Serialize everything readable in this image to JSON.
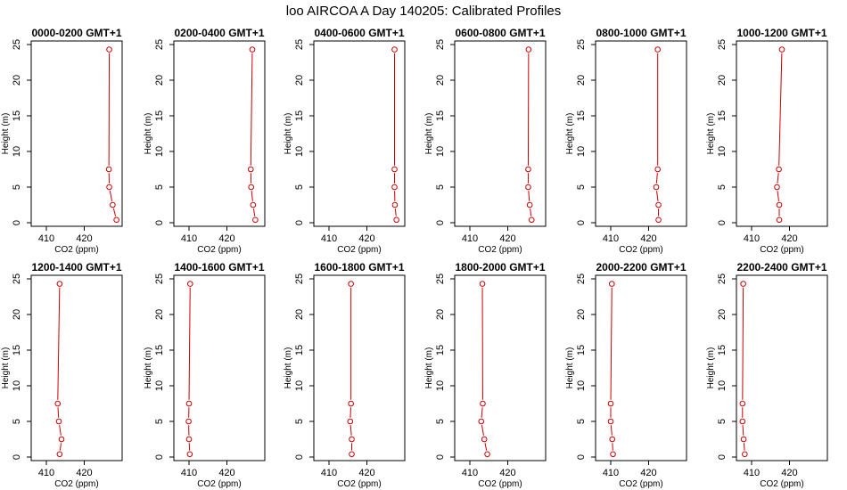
{
  "title": "loo AIRCOA A  Day 140205: Calibrated Profiles",
  "colors": {
    "series": "#cc0000",
    "axis": "#000000",
    "background": "#ffffff"
  },
  "chart_data": [
    {
      "type": "line",
      "title": "0000-0200 GMT+1",
      "xlabel": "CO2 (ppm)",
      "ylabel": "Height (m)",
      "xlim": [
        406,
        430
      ],
      "ylim": [
        -0.5,
        25.5
      ],
      "xticks": [
        410,
        420
      ],
      "yticks": [
        0,
        5,
        10,
        15,
        20,
        25
      ],
      "x": [
        428.5,
        427.5,
        426.6,
        426.5,
        426.6
      ],
      "y": [
        0.4,
        2.5,
        5,
        7.5,
        24.3
      ]
    },
    {
      "type": "line",
      "title": "0200-0400 GMT+1",
      "xlabel": "CO2 (ppm)",
      "ylabel": "Height (m)",
      "xlim": [
        406,
        430
      ],
      "ylim": [
        -0.5,
        25.5
      ],
      "xticks": [
        410,
        420
      ],
      "yticks": [
        0,
        5,
        10,
        15,
        20,
        25
      ],
      "x": [
        427.5,
        426.9,
        426.4,
        426.3,
        426.7
      ],
      "y": [
        0.4,
        2.5,
        5,
        7.5,
        24.3
      ]
    },
    {
      "type": "line",
      "title": "0400-0600 GMT+1",
      "xlabel": "CO2 (ppm)",
      "ylabel": "Height (m)",
      "xlim": [
        406,
        430
      ],
      "ylim": [
        -0.5,
        25.5
      ],
      "xticks": [
        410,
        420
      ],
      "yticks": [
        0,
        5,
        10,
        15,
        20,
        25
      ],
      "x": [
        427.8,
        427.4,
        427.3,
        427.3,
        427.3
      ],
      "y": [
        0.4,
        2.5,
        5,
        7.5,
        24.3
      ]
    },
    {
      "type": "line",
      "title": "0600-0800 GMT+1",
      "xlabel": "CO2 (ppm)",
      "ylabel": "Height (m)",
      "xlim": [
        406,
        430
      ],
      "ylim": [
        -0.5,
        25.5
      ],
      "xticks": [
        410,
        420
      ],
      "yticks": [
        0,
        5,
        10,
        15,
        20,
        25
      ],
      "x": [
        426.3,
        425.8,
        425.4,
        425.4,
        425.5
      ],
      "y": [
        0.4,
        2.5,
        5,
        7.5,
        24.3
      ]
    },
    {
      "type": "line",
      "title": "0800-1000 GMT+1",
      "xlabel": "CO2 (ppm)",
      "ylabel": "Height (m)",
      "xlim": [
        406,
        430
      ],
      "ylim": [
        -0.5,
        25.5
      ],
      "xticks": [
        410,
        420
      ],
      "yticks": [
        0,
        5,
        10,
        15,
        20,
        25
      ],
      "x": [
        422.6,
        422.6,
        422.0,
        422.4,
        422.4
      ],
      "y": [
        0.4,
        2.5,
        5,
        7.5,
        24.3
      ]
    },
    {
      "type": "line",
      "title": "1000-1200 GMT+1",
      "xlabel": "CO2 (ppm)",
      "ylabel": "Height (m)",
      "xlim": [
        406,
        430
      ],
      "ylim": [
        -0.5,
        25.5
      ],
      "xticks": [
        410,
        420
      ],
      "yticks": [
        0,
        5,
        10,
        15,
        20,
        25
      ],
      "x": [
        417.3,
        417.3,
        416.7,
        417.2,
        418.0
      ],
      "y": [
        0.4,
        2.5,
        5,
        7.5,
        24.3
      ]
    },
    {
      "type": "line",
      "title": "1200-1400 GMT+1",
      "xlabel": "CO2 (ppm)",
      "ylabel": "Height (m)",
      "xlim": [
        406,
        430
      ],
      "ylim": [
        -0.5,
        25.5
      ],
      "xticks": [
        410,
        420
      ],
      "yticks": [
        0,
        5,
        10,
        15,
        20,
        25
      ],
      "x": [
        413.5,
        414.0,
        413.3,
        413.0,
        413.5
      ],
      "y": [
        0.4,
        2.5,
        5,
        7.5,
        24.3
      ]
    },
    {
      "type": "line",
      "title": "1400-1600 GMT+1",
      "xlabel": "CO2 (ppm)",
      "ylabel": "Height (m)",
      "xlim": [
        406,
        430
      ],
      "ylim": [
        -0.5,
        25.5
      ],
      "xticks": [
        410,
        420
      ],
      "yticks": [
        0,
        5,
        10,
        15,
        20,
        25
      ],
      "x": [
        410.2,
        410.0,
        409.9,
        410.0,
        410.3
      ],
      "y": [
        0.4,
        2.5,
        5,
        7.5,
        24.3
      ]
    },
    {
      "type": "line",
      "title": "1600-1800 GMT+1",
      "xlabel": "CO2 (ppm)",
      "ylabel": "Height (m)",
      "xlim": [
        406,
        430
      ],
      "ylim": [
        -0.5,
        25.5
      ],
      "xticks": [
        410,
        420
      ],
      "yticks": [
        0,
        5,
        10,
        15,
        20,
        25
      ],
      "x": [
        416.0,
        416.0,
        415.6,
        415.8,
        415.8
      ],
      "y": [
        0.4,
        2.5,
        5,
        7.5,
        24.3
      ]
    },
    {
      "type": "line",
      "title": "1800-2000 GMT+1",
      "xlabel": "CO2 (ppm)",
      "ylabel": "Height (m)",
      "xlim": [
        406,
        430
      ],
      "ylim": [
        -0.5,
        25.5
      ],
      "xticks": [
        410,
        420
      ],
      "yticks": [
        0,
        5,
        10,
        15,
        20,
        25
      ],
      "x": [
        414.6,
        413.8,
        413.0,
        413.4,
        413.3
      ],
      "y": [
        0.4,
        2.5,
        5,
        7.5,
        24.3
      ]
    },
    {
      "type": "line",
      "title": "2000-2200 GMT+1",
      "xlabel": "CO2 (ppm)",
      "ylabel": "Height (m)",
      "xlim": [
        406,
        430
      ],
      "ylim": [
        -0.5,
        25.5
      ],
      "xticks": [
        410,
        420
      ],
      "yticks": [
        0,
        5,
        10,
        15,
        20,
        25
      ],
      "x": [
        410.6,
        410.4,
        410.0,
        410.0,
        410.3
      ],
      "y": [
        0.4,
        2.5,
        5,
        7.5,
        24.3
      ]
    },
    {
      "type": "line",
      "title": "2200-2400 GMT+1",
      "xlabel": "CO2 (ppm)",
      "ylabel": "Height (m)",
      "xlim": [
        406,
        430
      ],
      "ylim": [
        -0.5,
        25.5
      ],
      "xticks": [
        410,
        420
      ],
      "yticks": [
        0,
        5,
        10,
        15,
        20,
        25
      ],
      "x": [
        408.2,
        407.9,
        407.6,
        407.6,
        407.8
      ],
      "y": [
        0.4,
        2.5,
        5,
        7.5,
        24.3
      ]
    }
  ]
}
